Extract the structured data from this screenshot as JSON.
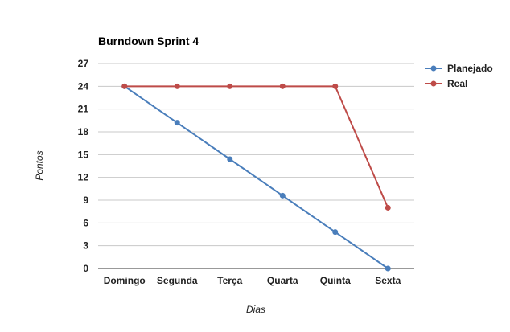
{
  "chart_data": {
    "type": "line",
    "title": "Burndown Sprint 4",
    "xlabel": "Dias",
    "ylabel": "Pontos",
    "categories": [
      "Domingo",
      "Segunda",
      "Terça",
      "Quarta",
      "Quinta",
      "Sexta"
    ],
    "yticks": [
      "0",
      "3",
      "6",
      "9",
      "12",
      "15",
      "18",
      "21",
      "24",
      "27"
    ],
    "ylim": [
      0,
      27
    ],
    "grid": true,
    "legend": "right",
    "series": [
      {
        "name": "Planejado",
        "color": "#4a7ebb",
        "values": [
          24,
          19.2,
          14.4,
          9.6,
          4.8,
          0
        ]
      },
      {
        "name": "Real",
        "color": "#be4b48",
        "values": [
          24,
          24,
          24,
          24,
          24,
          8
        ]
      }
    ]
  }
}
